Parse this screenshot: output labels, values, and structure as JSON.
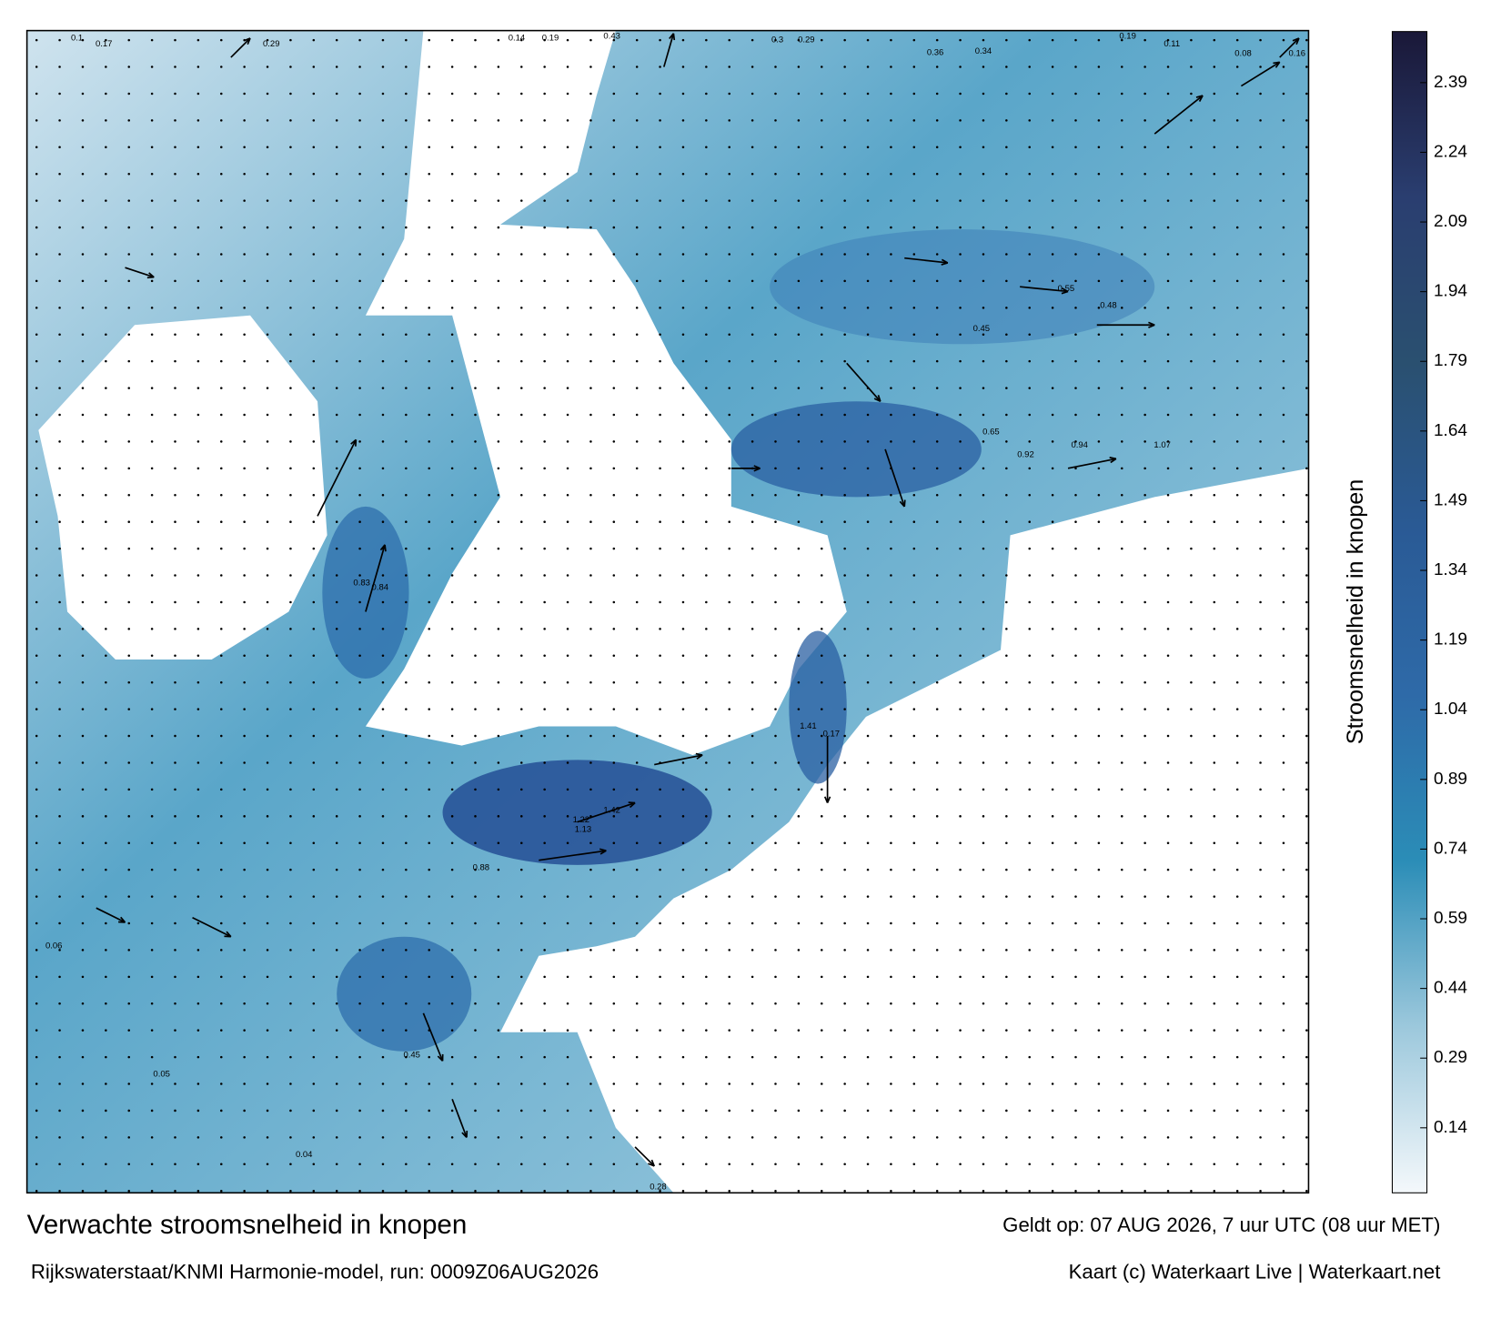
{
  "title": "Verwachte stroomsnelheid in knopen",
  "subtitle": "Rijkswaterstaat/KNMI Harmonie-model, run: 0009Z06AUG2026",
  "valid_time": "Geldt op: 07 AUG 2026, 7 uur UTC (08 uur MET)",
  "credit": "Kaart (c) Waterkaart Live | Waterkaart.net",
  "colorbar": {
    "label": "Stroomsnelheid in knopen",
    "range": [
      0,
      2.5
    ],
    "ticks": [
      0.14,
      0.29,
      0.44,
      0.59,
      0.74,
      0.89,
      1.04,
      1.19,
      1.34,
      1.49,
      1.64,
      1.79,
      1.94,
      2.09,
      2.24,
      2.39
    ],
    "colors": [
      "#f4f8fb",
      "#9cc8dc",
      "#2b8db7",
      "#2e6aa8",
      "#2a5a95",
      "#2a5070",
      "#2a3e70",
      "#1a1838"
    ]
  },
  "map_labels": [
    "0.1",
    "0.17",
    "0.29",
    "0.14",
    "0.19",
    "0.43",
    "0.3",
    "0.29",
    "0.36",
    "0.34",
    "0.19",
    "0.11",
    "0.08",
    "0.16",
    "0.45",
    "1.07",
    "0.92",
    "1.41",
    "1.42",
    "1.22",
    "1.13",
    "0.88",
    "0.04",
    "0.05",
    "0.06",
    "0.84",
    "0.83",
    "0.45",
    "0.55",
    "0.48",
    "0.65",
    "0.94",
    "0.17",
    "0.28"
  ]
}
